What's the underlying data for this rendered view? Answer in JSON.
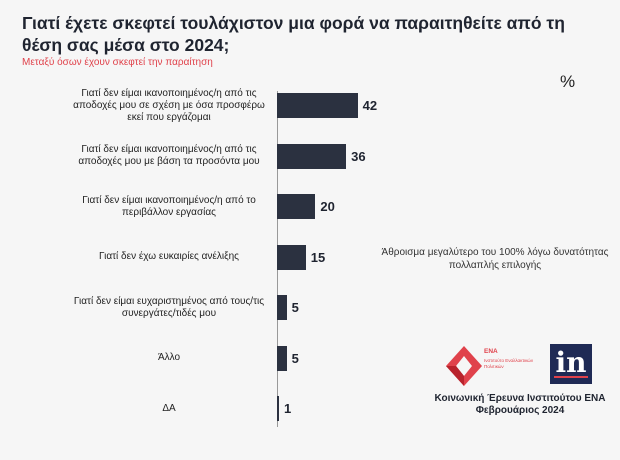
{
  "title": "Γιατί έχετε σκεφτεί τουλάχιστον μια φορά να παραιτηθείτε από τη θέση σας μέσα στο 2024;",
  "subtitle": "Μεταξύ όσων έχουν σκεφτεί την παραίτηση",
  "unit": "%",
  "note": "Άθροισμα μεγαλύτερο του 100% λόγω δυνατότητας πολλαπλής επιλογής",
  "logos": {
    "ena_label": "ΕΝΑ",
    "ena_sub": "Ινστιτούτο Εναλλακτικών Πολιτικών",
    "in_label": "in",
    "colors": {
      "accent": "#e0424b",
      "in_bg": "#1f2a55"
    }
  },
  "source": {
    "line1": "Κοινωνική Έρευνα Ινστιτούτου ΕΝΑ",
    "line2": "Φεβρουάριος 2024"
  },
  "chart_data": {
    "type": "bar",
    "orientation": "horizontal",
    "categories": [
      "Γιατί δεν είμαι ικανοποιημένος/η από τις αποδοχές μου σε σχέση με όσα προσφέρω εκεί που εργάζομαι",
      "Γιατί δεν είμαι ικανοποιημένος/η από τις αποδοχές μου με βάση τα προσόντα μου",
      "Γιατί δεν είμαι ικανοποιημένος/η από το περιβάλλον εργασίας",
      "Γιατί δεν έχω ευκαιρίες ανέλιξης",
      "Γιατί δεν είμαι ευχαριστημένος από τους/τις συνεργάτες/τιδές μου",
      "Άλλο",
      "ΔΑ"
    ],
    "values": [
      42,
      36,
      20,
      15,
      5,
      5,
      1
    ],
    "bar_color": "#2b3140",
    "xlim": [
      0,
      100
    ],
    "grid": false,
    "legend": "none"
  }
}
